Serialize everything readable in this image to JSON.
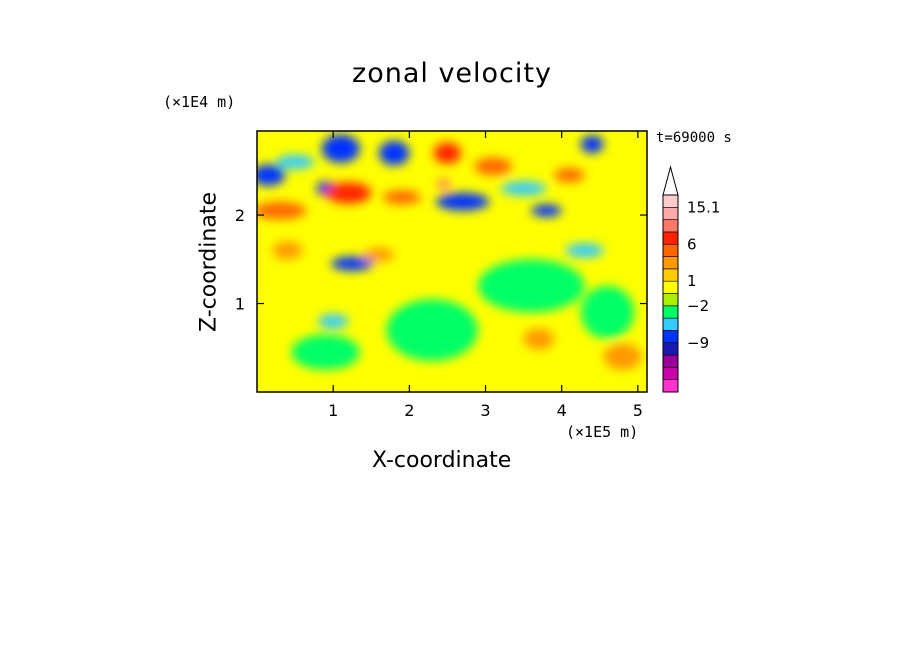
{
  "chart_data": {
    "type": "heatmap",
    "title": "zonal velocity",
    "xlabel": "X-coordinate",
    "ylabel": "Z-coordinate",
    "x_unit": "(×1E5 m)",
    "y_unit": "(×1E4 m)",
    "time_label": "t=69000 s",
    "xlim": [
      0,
      5.12
    ],
    "ylim": [
      0,
      2.95
    ],
    "x_ticks": [
      1,
      2,
      3,
      4,
      5
    ],
    "x_tick_labels": [
      "1",
      "2",
      "3",
      "4",
      "5"
    ],
    "y_ticks": [
      1,
      2
    ],
    "y_tick_labels": [
      "1",
      "2"
    ],
    "colorbar": {
      "colors": [
        "#ff33cc",
        "#cc00aa",
        "#990099",
        "#1a1ab2",
        "#0033ff",
        "#33ccff",
        "#00ff66",
        "#aaee00",
        "#ffff00",
        "#ffcc00",
        "#ff9900",
        "#ff6600",
        "#ff2200",
        "#ff7766",
        "#ffaaaa",
        "#ffcccc"
      ],
      "extend_top": true,
      "labels": [
        {
          "value": "15.1",
          "level": 14
        },
        {
          "value": "6",
          "level": 11
        },
        {
          "value": "1",
          "level": 8
        },
        {
          "value": "−2",
          "level": 6
        },
        {
          "value": "−9",
          "level": 3
        }
      ]
    },
    "features": [
      {
        "x": 0.15,
        "z": 2.45,
        "level": 4,
        "rx": 0.22,
        "rz": 0.12
      },
      {
        "x": 1.1,
        "z": 2.75,
        "level": 4,
        "rx": 0.25,
        "rz": 0.16
      },
      {
        "x": 1.8,
        "z": 2.7,
        "level": 4,
        "rx": 0.2,
        "rz": 0.14
      },
      {
        "x": 2.7,
        "z": 2.15,
        "level": 4,
        "rx": 0.35,
        "rz": 0.1
      },
      {
        "x": 1.25,
        "z": 1.45,
        "level": 4,
        "rx": 0.28,
        "rz": 0.08
      },
      {
        "x": 0.9,
        "z": 2.3,
        "level": 4,
        "rx": 0.12,
        "rz": 0.08
      },
      {
        "x": 3.8,
        "z": 2.05,
        "level": 4,
        "rx": 0.2,
        "rz": 0.07
      },
      {
        "x": 4.4,
        "z": 2.8,
        "level": 4,
        "rx": 0.15,
        "rz": 0.1
      },
      {
        "x": 1.2,
        "z": 2.25,
        "level": 12,
        "rx": 0.3,
        "rz": 0.12
      },
      {
        "x": 2.5,
        "z": 2.7,
        "level": 12,
        "rx": 0.18,
        "rz": 0.12
      },
      {
        "x": 2.45,
        "z": 2.35,
        "level": 13,
        "rx": 0.08,
        "rz": 0.06
      },
      {
        "x": 0.3,
        "z": 2.05,
        "level": 11,
        "rx": 0.35,
        "rz": 0.1
      },
      {
        "x": 3.1,
        "z": 2.55,
        "level": 11,
        "rx": 0.25,
        "rz": 0.1
      },
      {
        "x": 1.9,
        "z": 2.2,
        "level": 11,
        "rx": 0.25,
        "rz": 0.08
      },
      {
        "x": 1.6,
        "z": 1.55,
        "level": 10,
        "rx": 0.2,
        "rz": 0.08
      },
      {
        "x": 4.1,
        "z": 2.45,
        "level": 11,
        "rx": 0.2,
        "rz": 0.08
      },
      {
        "x": 2.3,
        "z": 0.7,
        "level": 6,
        "rx": 0.6,
        "rz": 0.35
      },
      {
        "x": 3.6,
        "z": 1.2,
        "level": 6,
        "rx": 0.7,
        "rz": 0.3
      },
      {
        "x": 0.9,
        "z": 0.45,
        "level": 6,
        "rx": 0.45,
        "rz": 0.2
      },
      {
        "x": 4.6,
        "z": 0.9,
        "level": 6,
        "rx": 0.35,
        "rz": 0.3
      },
      {
        "x": 1.0,
        "z": 0.8,
        "level": 5,
        "rx": 0.2,
        "rz": 0.08
      },
      {
        "x": 4.3,
        "z": 1.6,
        "level": 5,
        "rx": 0.25,
        "rz": 0.08
      },
      {
        "x": 3.5,
        "z": 2.3,
        "level": 5,
        "rx": 0.3,
        "rz": 0.08
      },
      {
        "x": 0.5,
        "z": 2.6,
        "level": 5,
        "rx": 0.25,
        "rz": 0.08
      },
      {
        "x": 3.7,
        "z": 0.6,
        "level": 10,
        "rx": 0.2,
        "rz": 0.12
      },
      {
        "x": 4.8,
        "z": 0.4,
        "level": 10,
        "rx": 0.25,
        "rz": 0.15
      },
      {
        "x": 0.4,
        "z": 1.6,
        "level": 10,
        "rx": 0.2,
        "rz": 0.1
      }
    ]
  }
}
